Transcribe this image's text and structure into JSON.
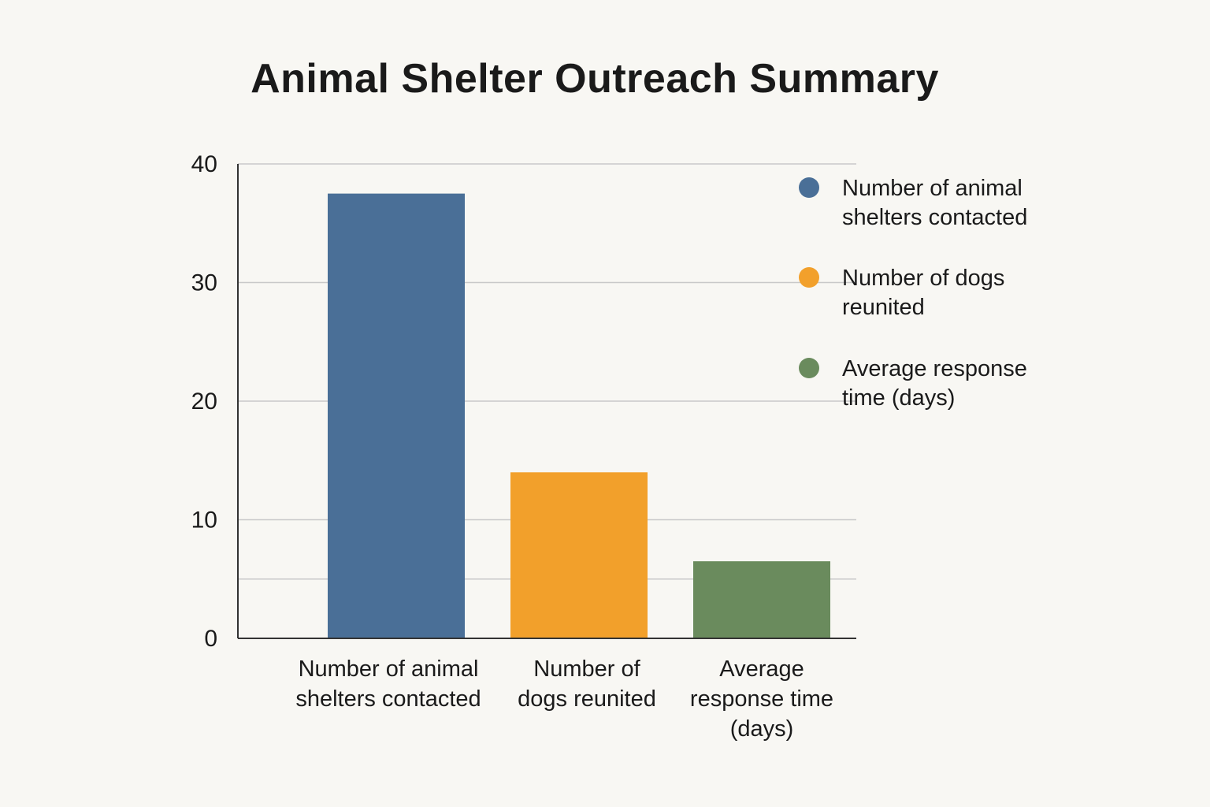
{
  "chart_data": {
    "type": "bar",
    "title": "Animal Shelter Outreach Summary",
    "categories": [
      "Number of animal shelters contacted",
      "Number of dogs reunited",
      "Average response time (days)"
    ],
    "category_label_lines": [
      [
        "Number of animal",
        "shelters contacted"
      ],
      [
        "Number of",
        "dogs reunited"
      ],
      [
        "Average",
        "response time",
        "(days)"
      ]
    ],
    "values": [
      37.5,
      14,
      6.5
    ],
    "colors": [
      "#4a6f97",
      "#f2a02b",
      "#6a8b5d"
    ],
    "ylim": [
      0,
      40
    ],
    "yticks": [
      0,
      10,
      20,
      30,
      40
    ],
    "gridlines": [
      10,
      20,
      30,
      40
    ],
    "extra_gridline": 5,
    "grid": true,
    "legend_position": "top-right",
    "legend": [
      {
        "lines": [
          "Number of animal",
          "shelters contacted"
        ],
        "color": "#4a6f97"
      },
      {
        "lines": [
          "Number of dogs",
          "reunited"
        ],
        "color": "#f2a02b"
      },
      {
        "lines": [
          "Average response",
          "time (days)"
        ],
        "color": "#6a8b5d"
      }
    ]
  }
}
